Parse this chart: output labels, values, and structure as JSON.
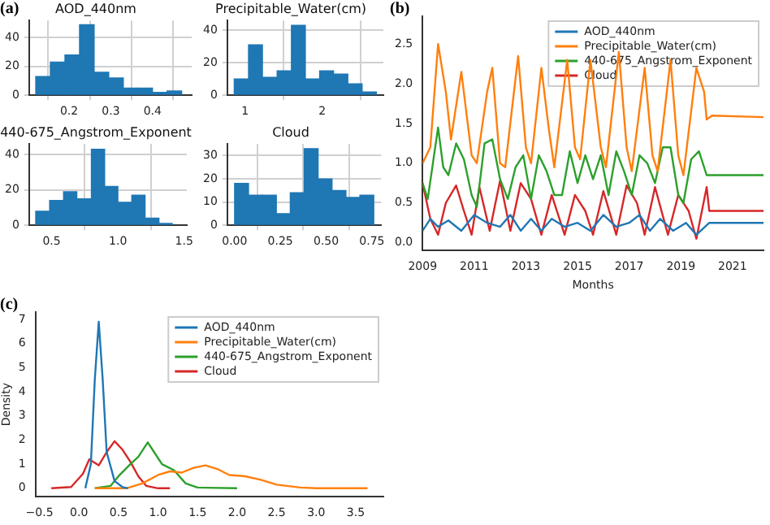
{
  "chart_data": [
    {
      "type": "histogram",
      "title": "AOD_440nm",
      "annotations": [
        "(a)"
      ],
      "bins": [
        0.12,
        0.155,
        0.19,
        0.225,
        0.26,
        0.295,
        0.33,
        0.365,
        0.4,
        0.435,
        0.47
      ],
      "values": [
        13,
        23,
        28,
        49,
        16,
        12,
        5,
        5,
        2,
        3
      ],
      "color": "#1f77b4",
      "xlim": [
        0.104,
        0.494
      ],
      "xticks": [
        0.2,
        0.3,
        0.4
      ],
      "ylim": [
        0,
        52
      ],
      "yticks": [
        0,
        20,
        40
      ],
      "grid": true
    },
    {
      "type": "histogram",
      "title": "Precipitable_Water(cm)",
      "bins": [
        0.86,
        1.04,
        1.23,
        1.41,
        1.6,
        1.78,
        1.96,
        2.15,
        2.33,
        2.52,
        2.7
      ],
      "values": [
        10,
        31,
        11,
        15,
        43,
        10,
        15,
        13,
        7,
        2
      ],
      "color": "#1f77b4",
      "xlim": [
        0.77,
        2.79
      ],
      "xticks": [
        1,
        2
      ],
      "ylim": [
        0,
        46
      ],
      "yticks": [
        0,
        20,
        40
      ],
      "grid": true
    },
    {
      "type": "histogram",
      "title": "440-675_Angstrom_Exponent",
      "bins": [
        0.38,
        0.48,
        0.59,
        0.69,
        0.8,
        0.9,
        1.0,
        1.1,
        1.21,
        1.31,
        1.41
      ],
      "values": [
        8,
        14,
        19,
        15,
        43,
        22,
        13,
        17,
        4,
        1
      ],
      "color": "#1f77b4",
      "xlim": [
        0.33,
        1.52
      ],
      "xticks": [
        {
          "value": 0.5,
          "label": "0.5"
        },
        {
          "value": 1,
          "label": "1.0"
        },
        {
          "value": 1.5,
          "label": "1.5"
        }
      ],
      "ylim": [
        0,
        46
      ],
      "yticks": [
        0,
        20,
        40
      ],
      "grid": true
    },
    {
      "type": "histogram",
      "title": "Cloud",
      "bins": [
        0,
        0.076,
        0.152,
        0.228,
        0.304,
        0.38,
        0.456,
        0.532,
        0.608,
        0.684,
        0.76
      ],
      "values": [
        18,
        13,
        13,
        5,
        14,
        33,
        20,
        15,
        12,
        13
      ],
      "color": "#1f77b4",
      "xlim": [
        -0.04,
        0.8
      ],
      "xticks": [
        {
          "value": 0,
          "label": "0.00"
        },
        {
          "value": 0.25,
          "label": "0.25"
        },
        {
          "value": 0.5,
          "label": "0.50"
        },
        {
          "value": 0.75,
          "label": "0.75"
        }
      ],
      "ylim": [
        0,
        35
      ],
      "yticks": [
        0,
        10,
        20,
        30
      ],
      "grid": true
    },
    {
      "type": "line",
      "annotations": [
        "(b)"
      ],
      "xlabel": "Months",
      "xlim": [
        2009,
        2022.2
      ],
      "xticks": [
        2009,
        2011,
        2013,
        2015,
        2017,
        2019,
        2021
      ],
      "ylim": [
        -0.1,
        2.85
      ],
      "yticks": [
        {
          "value": 0,
          "label": "0.0"
        },
        {
          "value": 0.5,
          "label": "0.5"
        },
        {
          "value": 1,
          "label": "1.0"
        },
        {
          "value": 1.5,
          "label": "1.5"
        },
        {
          "value": 2,
          "label": "2.0"
        },
        {
          "value": 2.5,
          "label": "2.5"
        }
      ],
      "legend": "top right",
      "series": [
        {
          "name": "AOD_440nm",
          "color": "#1f77b4",
          "x": [
            2009.0,
            2009.3,
            2009.6,
            2010.0,
            2010.5,
            2011.0,
            2011.5,
            2012.0,
            2012.4,
            2012.8,
            2013.2,
            2013.6,
            2014.0,
            2014.5,
            2015.0,
            2015.5,
            2016.0,
            2016.5,
            2017.0,
            2017.4,
            2017.8,
            2018.2,
            2018.7,
            2019.2,
            2019.6,
            2020.0,
            2020.1,
            2022.2
          ],
          "values": [
            0.15,
            0.3,
            0.2,
            0.28,
            0.15,
            0.35,
            0.25,
            0.2,
            0.35,
            0.15,
            0.3,
            0.15,
            0.3,
            0.2,
            0.25,
            0.15,
            0.35,
            0.2,
            0.25,
            0.35,
            0.15,
            0.3,
            0.15,
            0.25,
            0.1,
            0.22,
            0.25,
            0.25
          ]
        },
        {
          "name": "Precipitable_Water(cm)",
          "color": "#ff7f0e",
          "x": [
            2009.0,
            2009.3,
            2009.6,
            2009.9,
            2010.1,
            2010.5,
            2010.9,
            2011.1,
            2011.5,
            2011.7,
            2012.0,
            2012.2,
            2012.7,
            2013.0,
            2013.2,
            2013.6,
            2013.9,
            2014.1,
            2014.6,
            2014.9,
            2015.1,
            2015.5,
            2015.9,
            2016.1,
            2016.6,
            2016.9,
            2017.1,
            2017.6,
            2017.9,
            2018.1,
            2018.6,
            2018.9,
            2019.1,
            2019.6,
            2019.9,
            2020.0,
            2020.2,
            2022.2
          ],
          "values": [
            1.0,
            1.2,
            2.5,
            1.9,
            1.3,
            2.15,
            1.1,
            1.0,
            1.9,
            2.2,
            1.0,
            0.95,
            2.35,
            1.2,
            1.0,
            2.2,
            1.4,
            0.95,
            2.3,
            1.2,
            1.05,
            2.3,
            1.2,
            0.95,
            2.4,
            1.2,
            0.9,
            2.2,
            1.1,
            0.9,
            2.3,
            1.1,
            0.85,
            2.2,
            1.9,
            1.55,
            1.6,
            1.58
          ]
        },
        {
          "name": "440-675_Angstrom_Exponent",
          "color": "#2ca02c",
          "x": [
            2009.0,
            2009.2,
            2009.4,
            2009.6,
            2009.8,
            2010.0,
            2010.3,
            2010.6,
            2010.9,
            2011.1,
            2011.4,
            2011.7,
            2012.0,
            2012.3,
            2012.6,
            2012.9,
            2013.2,
            2013.5,
            2013.8,
            2014.1,
            2014.4,
            2014.7,
            2015.0,
            2015.3,
            2015.6,
            2015.9,
            2016.2,
            2016.5,
            2016.8,
            2017.1,
            2017.4,
            2017.7,
            2018.0,
            2018.3,
            2018.6,
            2018.9,
            2019.1,
            2019.4,
            2019.7,
            2019.9,
            2020.0,
            2022.2
          ],
          "values": [
            0.75,
            0.55,
            1.0,
            1.45,
            0.95,
            0.85,
            1.25,
            1.05,
            0.6,
            0.45,
            1.25,
            1.3,
            0.8,
            0.55,
            0.95,
            1.1,
            0.55,
            1.1,
            0.9,
            0.6,
            0.6,
            1.15,
            0.75,
            1.1,
            0.8,
            1.1,
            0.6,
            1.15,
            0.9,
            0.6,
            1.1,
            1.0,
            0.75,
            1.2,
            1.2,
            0.6,
            0.5,
            1.05,
            1.15,
            0.95,
            0.85,
            0.85
          ]
        },
        {
          "name": "Cloud",
          "color": "#d62728",
          "x": [
            2009.0,
            2009.3,
            2009.6,
            2009.9,
            2010.3,
            2010.6,
            2010.9,
            2011.2,
            2011.6,
            2012.0,
            2012.4,
            2012.8,
            2013.2,
            2013.6,
            2014.0,
            2014.5,
            2014.9,
            2015.3,
            2015.6,
            2016.0,
            2016.5,
            2016.9,
            2017.3,
            2017.6,
            2018.0,
            2018.5,
            2018.9,
            2019.3,
            2019.6,
            2020.0,
            2020.1,
            2022.2
          ],
          "values": [
            0.75,
            0.3,
            0.1,
            0.5,
            0.72,
            0.4,
            0.1,
            0.7,
            0.15,
            0.78,
            0.15,
            0.75,
            0.55,
            0.1,
            0.6,
            0.1,
            0.6,
            0.4,
            0.1,
            0.65,
            0.1,
            0.72,
            0.5,
            0.1,
            0.7,
            0.1,
            0.6,
            0.4,
            0.05,
            0.7,
            0.4,
            0.4
          ]
        }
      ]
    },
    {
      "type": "line",
      "annotations": [
        "(c)"
      ],
      "ylabel": "Density",
      "xlim": [
        -0.55,
        3.85
      ],
      "xticks": [
        {
          "value": -0.5,
          "label": "−0.5"
        },
        {
          "value": 0,
          "label": "0.0"
        },
        {
          "value": 0.5,
          "label": "0.5"
        },
        {
          "value": 1,
          "label": "1.0"
        },
        {
          "value": 1.5,
          "label": "1.5"
        },
        {
          "value": 2,
          "label": "2.0"
        },
        {
          "value": 2.5,
          "label": "2.5"
        },
        {
          "value": 3,
          "label": "3.0"
        },
        {
          "value": 3.5,
          "label": "3.5"
        }
      ],
      "ylim": [
        -0.35,
        7.3
      ],
      "yticks": [
        0,
        1,
        2,
        3,
        4,
        5,
        6,
        7
      ],
      "legend": "top right",
      "series": [
        {
          "name": "AOD_440nm",
          "color": "#1f77b4",
          "x": [
            0.08,
            0.15,
            0.2,
            0.25,
            0.3,
            0.35,
            0.45,
            0.55,
            0.62
          ],
          "values": [
            0,
            1.0,
            4.5,
            6.9,
            4.5,
            1.5,
            0.3,
            0.05,
            0
          ]
        },
        {
          "name": "Precipitable_Water(cm)",
          "color": "#ff7f0e",
          "x": [
            0.2,
            0.6,
            0.8,
            1.0,
            1.15,
            1.3,
            1.45,
            1.6,
            1.75,
            1.9,
            2.1,
            2.3,
            2.5,
            2.8,
            3.0,
            3.65
          ],
          "values": [
            0,
            0,
            0.2,
            0.55,
            0.7,
            0.65,
            0.85,
            0.95,
            0.8,
            0.55,
            0.5,
            0.35,
            0.15,
            0.03,
            0,
            0
          ]
        },
        {
          "name": "440-675_Angstrom_Exponent",
          "color": "#2ca02c",
          "x": [
            0.2,
            0.4,
            0.5,
            0.65,
            0.75,
            0.87,
            0.95,
            1.05,
            1.2,
            1.35,
            1.5,
            2.0
          ],
          "values": [
            0,
            0.1,
            0.5,
            1.0,
            1.3,
            1.9,
            1.5,
            1.0,
            0.75,
            0.2,
            0.03,
            0
          ]
        },
        {
          "name": "Cloud",
          "color": "#d62728",
          "x": [
            -0.35,
            -0.1,
            0.05,
            0.13,
            0.25,
            0.35,
            0.45,
            0.55,
            0.65,
            0.75,
            0.85,
            1.0,
            1.15
          ],
          "values": [
            0,
            0.05,
            0.6,
            1.2,
            0.95,
            1.5,
            1.95,
            1.6,
            1.1,
            0.5,
            0.1,
            0,
            0
          ]
        }
      ]
    }
  ]
}
